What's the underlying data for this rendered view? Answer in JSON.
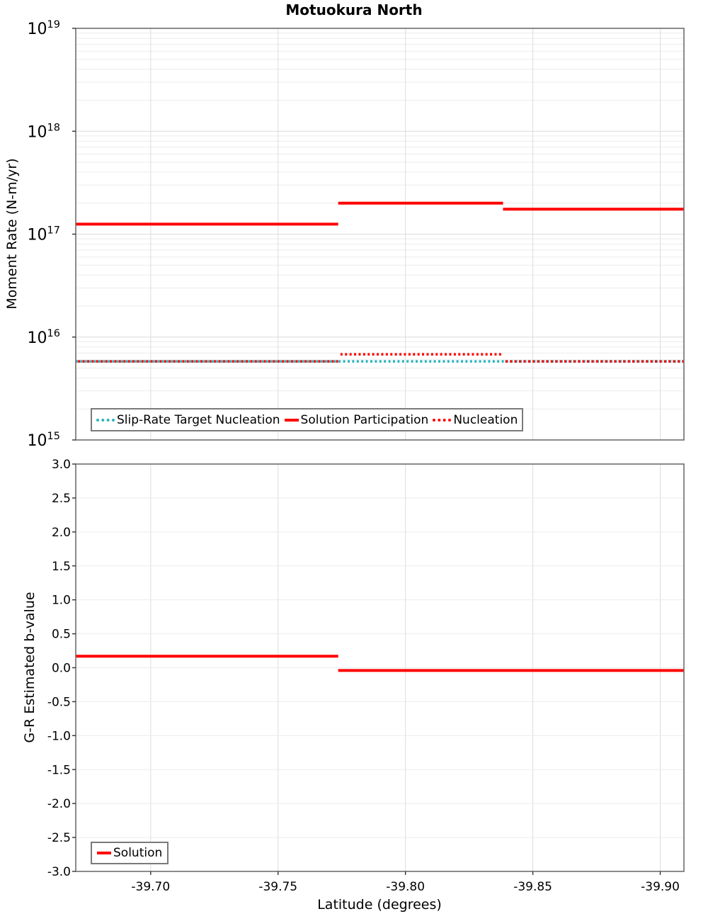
{
  "figure": {
    "title": "Motuokura North",
    "background_color": "#ffffff",
    "frame_color": "#6e6e6e",
    "grid_major_color": "#dcdcdc",
    "grid_minor_color": "#ebebeb"
  },
  "chart_data": [
    {
      "type": "line",
      "subplot": "top",
      "title": "Motuokura North",
      "ylabel": "Moment Rate (N-m/yr)",
      "xlabel": "",
      "yscale": "log",
      "ylim": [
        1000000000000000.0,
        1e+19
      ],
      "y_tick_exponents": [
        19,
        18,
        17,
        16,
        15
      ],
      "xlim": [
        -39.6706,
        -39.9093
      ],
      "grid": true,
      "legend_position": "lower left",
      "legend_labels": [
        "Slip-Rate Target Nucleation",
        "Solution Participation",
        "Nucleation"
      ],
      "series": [
        {
          "name": "Slip-Rate Target Nucleation",
          "color": "#2ab5bd",
          "line_style": "dotted",
          "steps": [
            {
              "lat_start": -39.6706,
              "lat_end": -39.9093,
              "value": 5800000000000000.0
            }
          ]
        },
        {
          "name": "Solution Participation",
          "color": "#ff0000",
          "line_style": "solid",
          "steps": [
            {
              "lat_start": -39.6706,
              "lat_end": -39.7736,
              "value": 1.25e+17
            },
            {
              "lat_start": -39.7736,
              "lat_end": -39.8383,
              "value": 2e+17
            },
            {
              "lat_start": -39.8383,
              "lat_end": -39.9093,
              "value": 1.75e+17
            }
          ]
        },
        {
          "name": "Nucleation",
          "color": "#ff0000",
          "line_style": "dotted",
          "steps": [
            {
              "lat_start": -39.6706,
              "lat_end": -39.7736,
              "value": 5800000000000000.0
            },
            {
              "lat_start": -39.7736,
              "lat_end": -39.8383,
              "value": 6800000000000000.0
            },
            {
              "lat_start": -39.8383,
              "lat_end": -39.9093,
              "value": 5800000000000000.0
            }
          ]
        }
      ]
    },
    {
      "type": "line",
      "subplot": "bottom",
      "ylabel": "G-R Estimated b-value",
      "xlabel": "Latitude (degrees)",
      "yscale": "linear",
      "ylim": [
        -3.0,
        3.0
      ],
      "y_tick_labels": [
        "3.0",
        "2.5",
        "2.0",
        "1.5",
        "1.0",
        "0.5",
        "0.0",
        "-0.5",
        "-1.0",
        "-1.5",
        "-2.0",
        "-2.5",
        "-3.0"
      ],
      "xlim": [
        -39.6706,
        -39.9093
      ],
      "x_tick_labels": [
        "-39.70",
        "-39.75",
        "-39.80",
        "-39.85",
        "-39.90"
      ],
      "grid": true,
      "legend_position": "lower left",
      "legend_labels": [
        "Solution"
      ],
      "series": [
        {
          "name": "Solution",
          "color": "#ff0000",
          "line_style": "solid",
          "steps": [
            {
              "lat_start": -39.6706,
              "lat_end": -39.7736,
              "value": 0.17
            },
            {
              "lat_start": -39.7736,
              "lat_end": -39.8383,
              "value": -0.04
            },
            {
              "lat_start": -39.8383,
              "lat_end": -39.9093,
              "value": -0.04
            }
          ]
        }
      ]
    }
  ]
}
